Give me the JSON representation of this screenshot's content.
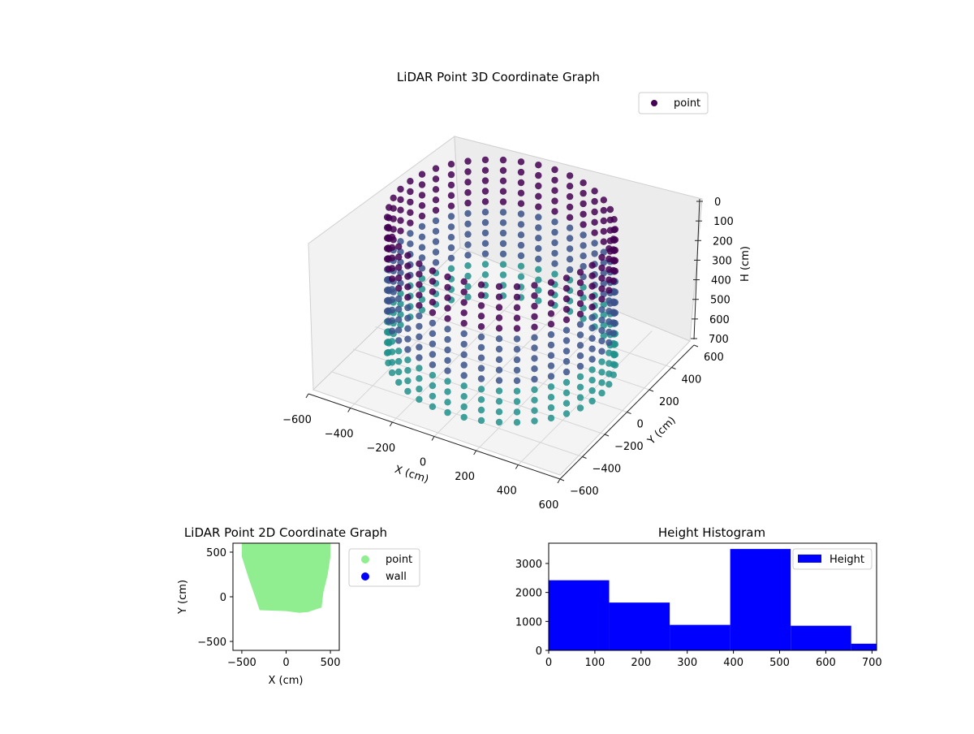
{
  "chart_data": [
    {
      "type": "scatter",
      "projection": "3d",
      "title": "LiDAR Point 3D Coordinate Graph",
      "xlabel": "X (cm)",
      "ylabel": "Y (cm)",
      "zlabel": "H (cm)",
      "xlim": [
        -600,
        600
      ],
      "ylim": [
        -600,
        600
      ],
      "zlim": [
        700,
        0
      ],
      "xticks": [
        "−600",
        "−400",
        "−200",
        "0",
        "200",
        "400",
        "600"
      ],
      "yticks": [
        "−600",
        "−400",
        "−200",
        "0",
        "200",
        "400",
        "600"
      ],
      "zticks": [
        "0",
        "100",
        "200",
        "300",
        "400",
        "500",
        "600",
        "700"
      ],
      "legend": {
        "label": "point",
        "placement": "upper-right"
      },
      "colormap": [
        "#440154",
        "#3b528b",
        "#21918c",
        "#5ec962"
      ],
      "series": [
        {
          "name": "point",
          "description_shape": "ring wall of points, radius ~480 cm, partially filled front",
          "ring_radius": 480,
          "h_range": [
            0,
            700
          ]
        }
      ]
    },
    {
      "type": "scatter",
      "title": "LiDAR Point 2D Coordinate Graph",
      "xlabel": "X (cm)",
      "ylabel": "Y (cm)",
      "xlim": [
        -600,
        600
      ],
      "ylim": [
        -600,
        600
      ],
      "xticks": [
        "−500",
        "0",
        "500"
      ],
      "yticks": [
        "−500",
        "0",
        "500"
      ],
      "legend": {
        "entries": [
          "point",
          "wall"
        ],
        "colors": [
          "#90ee90",
          "#0000ff"
        ],
        "placement": "outside-right"
      },
      "series": [
        {
          "name": "point",
          "color": "#90ee90",
          "outline": [
            [
              -500,
              600
            ],
            [
              500,
              600
            ],
            [
              500,
              450
            ],
            [
              470,
              250
            ],
            [
              420,
              50
            ],
            [
              400,
              -120
            ],
            [
              250,
              -170
            ],
            [
              150,
              -180
            ],
            [
              0,
              -160
            ],
            [
              -300,
              -150
            ],
            [
              -350,
              0
            ],
            [
              -420,
              200
            ],
            [
              -500,
              450
            ]
          ]
        }
      ]
    },
    {
      "type": "bar",
      "title": "Height Histogram",
      "xlim": [
        0,
        710
      ],
      "ylim": [
        0,
        3700
      ],
      "xticks": [
        "0",
        "100",
        "200",
        "300",
        "400",
        "500",
        "600",
        "700"
      ],
      "yticks": [
        "0",
        "1000",
        "2000",
        "3000"
      ],
      "legend": {
        "label": "Height",
        "placement": "upper-right"
      },
      "color": "#0000ff",
      "bins": [
        {
          "x0": 0,
          "x1": 131,
          "count": 2420
        },
        {
          "x0": 131,
          "x1": 262,
          "count": 1650
        },
        {
          "x0": 262,
          "x1": 393,
          "count": 880
        },
        {
          "x0": 393,
          "x1": 524,
          "count": 3500
        },
        {
          "x0": 524,
          "x1": 655,
          "count": 850
        },
        {
          "x0": 655,
          "x1": 710,
          "count": 230
        }
      ]
    }
  ]
}
